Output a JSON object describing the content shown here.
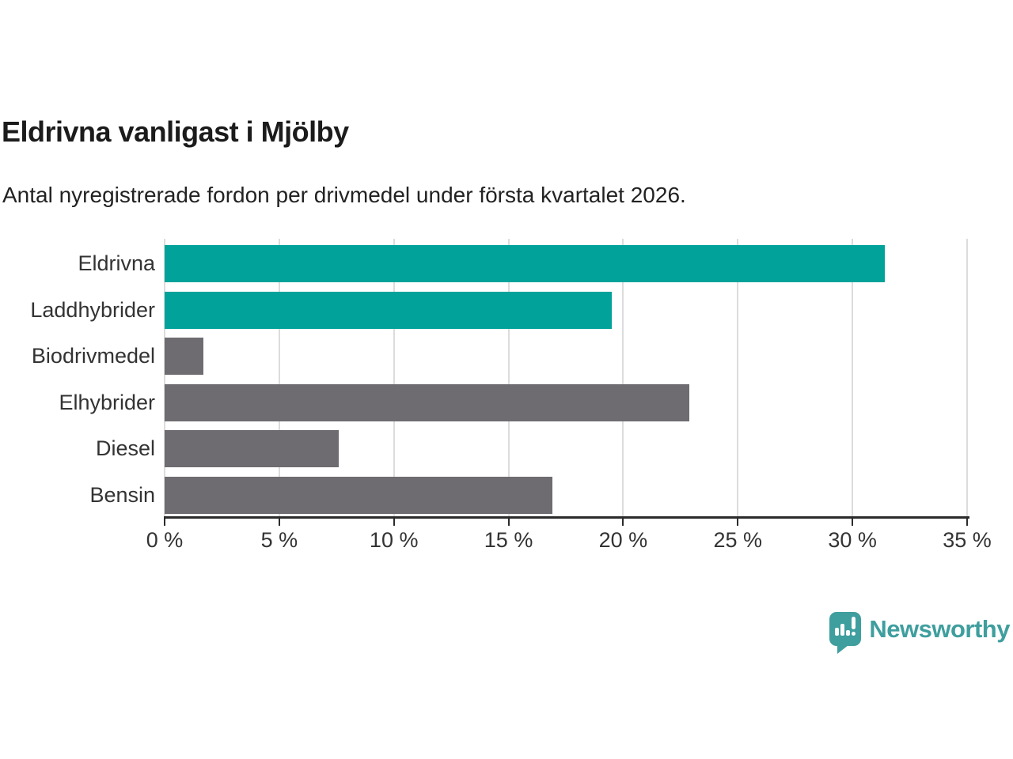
{
  "header": {
    "title": "Eldrivna vanligast i Mjölby",
    "subtitle": "Antal nyregistrerade fordon per drivmedel under första kvartalet 2026."
  },
  "chart_data": {
    "type": "bar",
    "orientation": "horizontal",
    "title": "Eldrivna vanligast i Mjölby",
    "subtitle": "Antal nyregistrerade fordon per drivmedel under första kvartalet 2026.",
    "categories": [
      "Eldrivna",
      "Laddhybrider",
      "Biodrivmedel",
      "Elhybrider",
      "Diesel",
      "Bensin"
    ],
    "values": [
      31.4,
      19.5,
      1.7,
      22.9,
      7.6,
      16.9
    ],
    "bar_colors": [
      "#00a29a",
      "#00a29a",
      "#6e6c70",
      "#6e6c70",
      "#6e6c70",
      "#6e6c70"
    ],
    "xlabel": "",
    "ylabel": "",
    "xlim": [
      0,
      35
    ],
    "x_tick_values": [
      0,
      5,
      10,
      15,
      20,
      25,
      30,
      35
    ],
    "x_tick_labels": [
      "0 %",
      "5 %",
      "10 %",
      "15 %",
      "20 %",
      "25 %",
      "30 %",
      "35 %"
    ],
    "grid": true,
    "legend": "none"
  },
  "colors": {
    "highlight_teal": "#00a29a",
    "neutral_gray": "#6e6c70",
    "gridline": "#dcdcdc",
    "axis": "#2b2b2b",
    "logo_teal": "#3f9e9e"
  },
  "branding": {
    "logo_text": "Newsworthy"
  }
}
